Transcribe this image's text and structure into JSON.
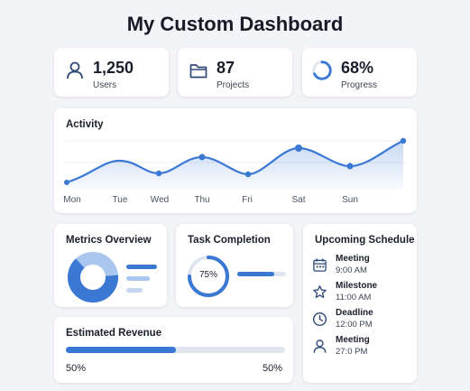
{
  "header": {
    "title": "My Custom Dashboard"
  },
  "stats": [
    {
      "icon": "user-icon",
      "value": "1,250",
      "label": "Users"
    },
    {
      "icon": "folder-icon",
      "value": "87",
      "label": "Projects"
    },
    {
      "icon": "progress-ring-icon",
      "value": "68%",
      "label": "Progress",
      "progress": 0.68
    }
  ],
  "activity": {
    "title": "Activity",
    "days": [
      "Mon",
      "Tue",
      "Wed",
      "Thu",
      "Fri",
      "Sat",
      "Sun"
    ]
  },
  "metrics": {
    "title": "Metrics Overview"
  },
  "task": {
    "title": "Task Completion",
    "percent_label": "75%",
    "percent": 75
  },
  "revenue": {
    "title": "Estimated Revenue",
    "left_label": "50%",
    "right_label": "50%",
    "percent": 50
  },
  "schedule": {
    "title": "Upcoming Schedule",
    "items": [
      {
        "icon": "calendar-icon",
        "title": "Meeting",
        "time": "9:00 AM"
      },
      {
        "icon": "star-icon",
        "title": "Milestone",
        "time": "11:00 AM"
      },
      {
        "icon": "clock-icon",
        "title": "Deadline",
        "time": "12:00 PM"
      },
      {
        "icon": "user-icon",
        "title": "Meeting",
        "time": "27:0 PM"
      }
    ]
  },
  "colors": {
    "accent": "#3a78d4",
    "accent_light": "#a9c6ee",
    "track": "#dfe6f0"
  }
}
